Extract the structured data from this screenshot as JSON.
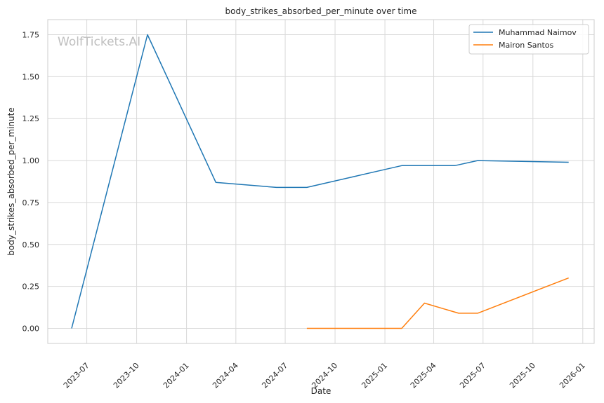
{
  "chart_data": {
    "type": "line",
    "title": "body_strikes_absorbed_per_minute over time",
    "xlabel": "Date",
    "ylabel": "body_strikes_absorbed_per_minute",
    "watermark": "WolfTickets.AI",
    "xlim": [
      "2023-04-20",
      "2026-01-22"
    ],
    "ylim": [
      -0.09,
      1.84
    ],
    "x_ticks": [
      "2023-07",
      "2023-10",
      "2024-01",
      "2024-04",
      "2024-07",
      "2024-10",
      "2025-01",
      "2025-04",
      "2025-07",
      "2025-10",
      "2026-01"
    ],
    "y_ticks": [
      "0.00",
      "0.25",
      "0.50",
      "0.75",
      "1.00",
      "1.25",
      "1.50",
      "1.75"
    ],
    "grid": true,
    "legend_position": "top-right",
    "series": [
      {
        "name": "Muhammad Naimov",
        "color": "#1f77b4",
        "points": [
          {
            "x": "2023-06-03",
            "y": 0.0
          },
          {
            "x": "2023-10-21",
            "y": 1.75
          },
          {
            "x": "2024-02-24",
            "y": 0.87
          },
          {
            "x": "2024-06-15",
            "y": 0.84
          },
          {
            "x": "2024-08-10",
            "y": 0.84
          },
          {
            "x": "2025-02-01",
            "y": 0.97
          },
          {
            "x": "2025-05-10",
            "y": 0.97
          },
          {
            "x": "2025-06-21",
            "y": 1.0
          },
          {
            "x": "2025-12-06",
            "y": 0.99
          }
        ]
      },
      {
        "name": "Mairon Santos",
        "color": "#ff7f0e",
        "points": [
          {
            "x": "2024-08-10",
            "y": 0.0
          },
          {
            "x": "2025-02-01",
            "y": 0.0
          },
          {
            "x": "2025-03-15",
            "y": 0.15
          },
          {
            "x": "2025-05-17",
            "y": 0.09
          },
          {
            "x": "2025-06-21",
            "y": 0.09
          },
          {
            "x": "2025-12-06",
            "y": 0.3
          }
        ]
      }
    ]
  }
}
